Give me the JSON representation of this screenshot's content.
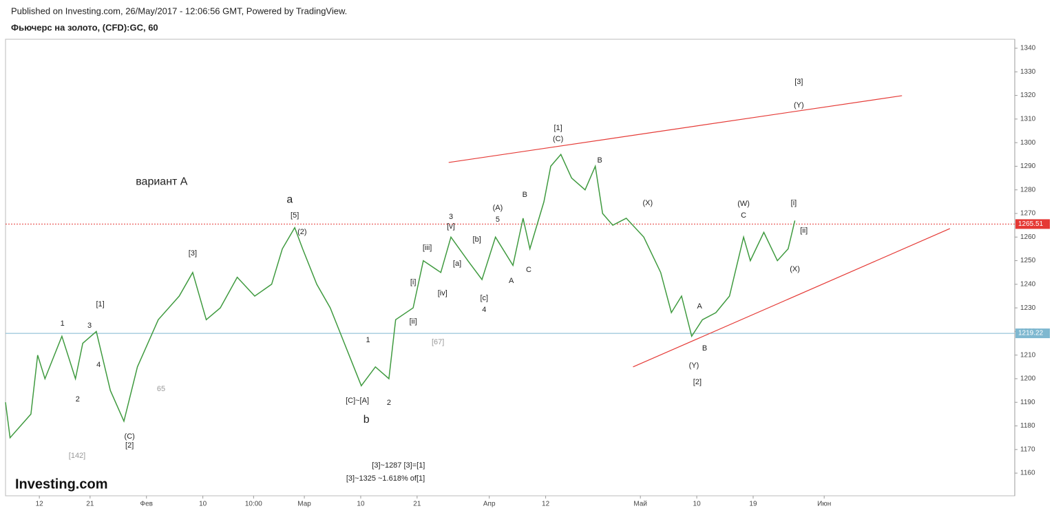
{
  "header": {
    "published": "Published on Investing.com, 26/May/2017 - 12:06:56 GMT, Powered by TradingView.",
    "symbol": "Фьючерс на золото, (CFD):GC, 60"
  },
  "logo": "Investing.com",
  "chart_data": {
    "type": "line",
    "series": [
      {
        "color": "#3f9a3f",
        "x": [
          6.0,
          6.8,
          10.5,
          11.7,
          13.0,
          16.0,
          18.4,
          19.7,
          22.1,
          24.6,
          27.0,
          29.4,
          33.1,
          36.8,
          39.2,
          41.6,
          44.1,
          47.1,
          50.2,
          53.2,
          55.1,
          57.3,
          58.7,
          61.2,
          63.6,
          66.1,
          69.1,
          71.6,
          74.0,
          75.2,
          78.3,
          80.1,
          83.2,
          85.0,
          88.0,
          90.5,
          92.9,
          96.0,
          97.8,
          99.0,
          101.5,
          102.7,
          104.5,
          106.4,
          108.8,
          110.6,
          111.9,
          113.7,
          116.1,
          119.2,
          122.2,
          124.1,
          125.9,
          127.7,
          129.6,
          132.0,
          134.4,
          136.9,
          138.1,
          140.5,
          142.9,
          144.8,
          146.0
        ],
        "values": [
          1190,
          1175,
          1185,
          1210,
          1200,
          1218,
          1200,
          1215,
          1220,
          1195,
          1182,
          1205,
          1225,
          1235,
          1245,
          1225,
          1230,
          1243,
          1235,
          1240,
          1255,
          1264,
          1255,
          1240,
          1230,
          1215,
          1197,
          1205,
          1200,
          1225,
          1230,
          1250,
          1245,
          1260,
          1250,
          1242,
          1260,
          1248,
          1268,
          1255,
          1275,
          1290,
          1295,
          1285,
          1280,
          1290,
          1270,
          1265,
          1268,
          1260,
          1245,
          1228,
          1235,
          1218,
          1225,
          1228,
          1235,
          1260,
          1250,
          1262,
          1250,
          1255,
          1267
        ]
      }
    ],
    "xlim": [
      6,
      185
    ],
    "xticks": [
      {
        "value": 12,
        "label": "12"
      },
      {
        "value": 21,
        "label": "21"
      },
      {
        "value": 31,
        "label": "Фев"
      },
      {
        "value": 41,
        "label": "10"
      },
      {
        "value": 50,
        "label": "10:00"
      },
      {
        "value": 59,
        "label": "Мар"
      },
      {
        "value": 69,
        "label": "10"
      },
      {
        "value": 79,
        "label": "21"
      },
      {
        "value": 91.8,
        "label": "Апр"
      },
      {
        "value": 101.8,
        "label": "12"
      },
      {
        "value": 118.6,
        "label": "Май"
      },
      {
        "value": 128.6,
        "label": "10"
      },
      {
        "value": 138.6,
        "label": "19"
      },
      {
        "value": 151.2,
        "label": "Июн"
      }
    ],
    "ylim": [
      1150.4,
      1343.8
    ],
    "yticks": [
      1160,
      1170,
      1180,
      1190,
      1200,
      1210,
      1220,
      1230,
      1240,
      1250,
      1260,
      1270,
      1280,
      1290,
      1300,
      1310,
      1320,
      1330,
      1340
    ],
    "price_lines": [
      {
        "value": 1265.51,
        "color": "#e53935",
        "dotted": true
      },
      {
        "value": 1219.22,
        "color": "#7fb8d0",
        "dotted": false
      }
    ],
    "trendlines": [
      {
        "color": "#e53935",
        "x": [
          84.6,
          165.0
        ],
        "y": [
          1291.6,
          1319.9
        ]
      },
      {
        "color": "#e53935",
        "x": [
          117.3,
          173.5
        ],
        "y": [
          1205.0,
          1263.6
        ]
      }
    ],
    "annotations": [
      {
        "text": "вариант А",
        "x": 33.7,
        "y": 1283.4,
        "style": "big"
      },
      {
        "text": "a",
        "x": 56.4,
        "y": 1275.8,
        "style": "big"
      },
      {
        "text": "b",
        "x": 70.0,
        "y": 1182.5,
        "style": "big"
      },
      {
        "text": "[1]",
        "x": 104.0,
        "y": 1306.2
      },
      {
        "text": "(C)",
        "x": 104.0,
        "y": 1301.5
      },
      {
        "text": "[3]",
        "x": 146.7,
        "y": 1325.7
      },
      {
        "text": "(Y)",
        "x": 146.7,
        "y": 1315.8
      },
      {
        "text": "[2]",
        "x": 128.7,
        "y": 1198.5
      },
      {
        "text": "(Y)",
        "x": 128.1,
        "y": 1205.5
      },
      {
        "text": "(W)",
        "x": 136.9,
        "y": 1274.1
      },
      {
        "text": "C",
        "x": 136.9,
        "y": 1269.1
      },
      {
        "text": "[i]",
        "x": 145.8,
        "y": 1274.4
      },
      {
        "text": "[ii]",
        "x": 147.6,
        "y": 1262.7
      },
      {
        "text": "(X)",
        "x": 146.0,
        "y": 1246.4
      },
      {
        "text": "B",
        "x": 130.0,
        "y": 1212.8
      },
      {
        "text": "A",
        "x": 129.1,
        "y": 1230.6
      },
      {
        "text": "B",
        "x": 111.4,
        "y": 1292.4
      },
      {
        "text": "(X)",
        "x": 119.9,
        "y": 1274.4
      },
      {
        "text": "1",
        "x": 70.3,
        "y": 1216.3
      },
      {
        "text": "2",
        "x": 74.0,
        "y": 1189.8
      },
      {
        "text": "[C]~[A]",
        "x": 68.4,
        "y": 1190.6
      },
      {
        "text": "[5]",
        "x": 57.3,
        "y": 1269.1
      },
      {
        "text": "(2)",
        "x": 58.6,
        "y": 1262.1
      },
      {
        "text": "[3]",
        "x": 39.2,
        "y": 1253.1
      },
      {
        "text": "[1]",
        "x": 22.8,
        "y": 1231.5
      },
      {
        "text": "1",
        "x": 16.1,
        "y": 1223.3
      },
      {
        "text": "3",
        "x": 20.9,
        "y": 1222.4
      },
      {
        "text": "2",
        "x": 18.8,
        "y": 1191.2
      },
      {
        "text": "4",
        "x": 22.5,
        "y": 1205.8
      },
      {
        "text": "(C)",
        "x": 28.0,
        "y": 1175.5
      },
      {
        "text": "[2]",
        "x": 28.0,
        "y": 1171.7
      },
      {
        "text": "[142]",
        "x": 18.7,
        "y": 1167.3,
        "style": "grey"
      },
      {
        "text": "65",
        "x": 33.6,
        "y": 1195.6,
        "style": "grey"
      },
      {
        "text": "[67]",
        "x": 82.7,
        "y": 1215.4,
        "style": "grey"
      },
      {
        "text": "3",
        "x": 85.0,
        "y": 1268.5
      },
      {
        "text": "[v]",
        "x": 85.0,
        "y": 1264.4
      },
      {
        "text": "5",
        "x": 93.3,
        "y": 1267.4
      },
      {
        "text": "(A)",
        "x": 93.3,
        "y": 1272.3
      },
      {
        "text": "B",
        "x": 98.1,
        "y": 1277.9
      },
      {
        "text": "C",
        "x": 98.8,
        "y": 1246.1
      },
      {
        "text": "A",
        "x": 95.7,
        "y": 1241.4
      },
      {
        "text": "4",
        "x": 90.9,
        "y": 1229.1
      },
      {
        "text": "[c]",
        "x": 90.9,
        "y": 1234.1
      },
      {
        "text": "[i]",
        "x": 78.3,
        "y": 1240.8
      },
      {
        "text": "[ii]",
        "x": 78.3,
        "y": 1224.2
      },
      {
        "text": "[iii]",
        "x": 80.8,
        "y": 1255.4
      },
      {
        "text": "[iv]",
        "x": 83.5,
        "y": 1236.1
      },
      {
        "text": "[b]",
        "x": 89.6,
        "y": 1258.9
      },
      {
        "text": "[a]",
        "x": 86.1,
        "y": 1248.7
      },
      {
        "text": "[3]~1287 [3]=[1]",
        "x": 75.7,
        "y": 1163.2
      },
      {
        "text": "[3]~1325 ~1.618% of[1]",
        "x": 73.4,
        "y": 1157.7
      }
    ]
  }
}
